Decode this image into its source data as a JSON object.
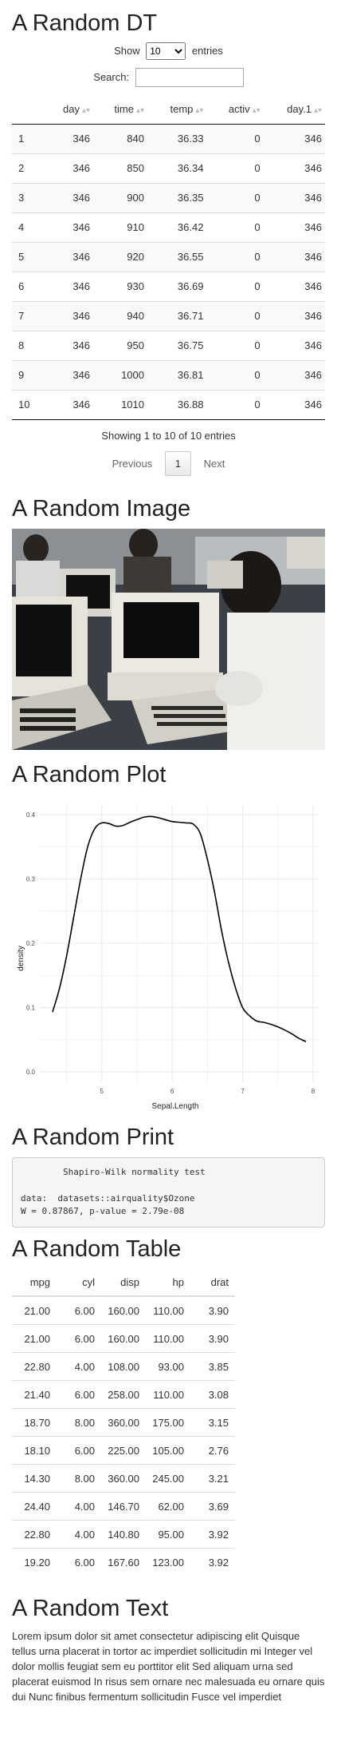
{
  "sections": {
    "dt_title": "A Random DT",
    "image_title": "A Random Image",
    "plot_title": "A Random Plot",
    "print_title": "A Random Print",
    "table_title": "A Random Table",
    "text_title": "A Random Text"
  },
  "dt": {
    "show_label": "Show",
    "entries_label": "entries",
    "length_value": "10",
    "search_label": "Search:",
    "search_value": "",
    "columns": [
      "",
      "day",
      "time",
      "temp",
      "activ",
      "day.1"
    ],
    "rows": [
      [
        "1",
        "346",
        "840",
        "36.33",
        "0",
        "346"
      ],
      [
        "2",
        "346",
        "850",
        "36.34",
        "0",
        "346"
      ],
      [
        "3",
        "346",
        "900",
        "36.35",
        "0",
        "346"
      ],
      [
        "4",
        "346",
        "910",
        "36.42",
        "0",
        "346"
      ],
      [
        "5",
        "346",
        "920",
        "36.55",
        "0",
        "346"
      ],
      [
        "6",
        "346",
        "930",
        "36.69",
        "0",
        "346"
      ],
      [
        "7",
        "346",
        "940",
        "36.71",
        "0",
        "346"
      ],
      [
        "8",
        "346",
        "950",
        "36.75",
        "0",
        "346"
      ],
      [
        "9",
        "346",
        "1000",
        "36.81",
        "0",
        "346"
      ],
      [
        "10",
        "346",
        "1010",
        "36.88",
        "0",
        "346"
      ]
    ],
    "info": "Showing 1 to 10 of 10 entries",
    "previous": "Previous",
    "page": "1",
    "next": "Next"
  },
  "chart_data": {
    "type": "line",
    "title": "",
    "xlabel": "Sepal.Length",
    "ylabel": "density",
    "xlim": [
      4.3,
      7.9
    ],
    "ylim": [
      0,
      0.4
    ],
    "xticks": [
      "5",
      "6",
      "7",
      "8"
    ],
    "yticks": [
      "0.0",
      "0.1",
      "0.2",
      "0.3",
      "0.4"
    ],
    "grid": true,
    "series": [
      {
        "x": [
          4.3,
          4.4,
          4.5,
          4.6,
          4.7,
          4.8,
          4.9,
          5.0,
          5.1,
          5.2,
          5.3,
          5.4,
          5.5,
          5.6,
          5.7,
          5.8,
          5.9,
          6.0,
          6.1,
          6.2,
          6.3,
          6.4,
          6.5,
          6.6,
          6.7,
          6.8,
          6.9,
          7.0,
          7.1,
          7.2,
          7.3,
          7.4,
          7.5,
          7.6,
          7.7,
          7.8,
          7.9
        ],
        "values": [
          0.093,
          0.13,
          0.18,
          0.24,
          0.3,
          0.35,
          0.378,
          0.387,
          0.386,
          0.382,
          0.383,
          0.388,
          0.392,
          0.396,
          0.397,
          0.395,
          0.392,
          0.389,
          0.388,
          0.387,
          0.385,
          0.37,
          0.33,
          0.28,
          0.22,
          0.17,
          0.13,
          0.1,
          0.087,
          0.079,
          0.077,
          0.074,
          0.07,
          0.065,
          0.059,
          0.052,
          0.047
        ]
      }
    ]
  },
  "print": {
    "text": "        Shapiro-Wilk normality test\n\ndata:  datasets::airquality$Ozone\nW = 0.87867, p-value = 2.79e-08"
  },
  "table": {
    "columns": [
      "mpg",
      "cyl",
      "disp",
      "hp",
      "drat"
    ],
    "rows": [
      [
        "21.00",
        "6.00",
        "160.00",
        "110.00",
        "3.90"
      ],
      [
        "21.00",
        "6.00",
        "160.00",
        "110.00",
        "3.90"
      ],
      [
        "22.80",
        "4.00",
        "108.00",
        "93.00",
        "3.85"
      ],
      [
        "21.40",
        "6.00",
        "258.00",
        "110.00",
        "3.08"
      ],
      [
        "18.70",
        "8.00",
        "360.00",
        "175.00",
        "3.15"
      ],
      [
        "18.10",
        "6.00",
        "225.00",
        "105.00",
        "2.76"
      ],
      [
        "14.30",
        "8.00",
        "360.00",
        "245.00",
        "3.21"
      ],
      [
        "24.40",
        "4.00",
        "146.70",
        "62.00",
        "3.69"
      ],
      [
        "22.80",
        "4.00",
        "140.80",
        "95.00",
        "3.92"
      ],
      [
        "19.20",
        "6.00",
        "167.60",
        "123.00",
        "3.92"
      ]
    ]
  },
  "text": {
    "body": "Lorem ipsum dolor sit amet consectetur adipiscing elit Quisque tellus urna placerat in tortor ac imperdiet sollicitudin mi Integer vel dolor mollis feugiat sem eu porttitor elit Sed aliquam urna sed placerat euismod In risus sem ornare nec malesuada eu ornare quis dui Nunc finibus fermentum sollicitudin Fusce vel imperdiet"
  },
  "colors": {
    "curve": "#000000",
    "grid": "#ebebeb",
    "panel": "#ffffff"
  }
}
